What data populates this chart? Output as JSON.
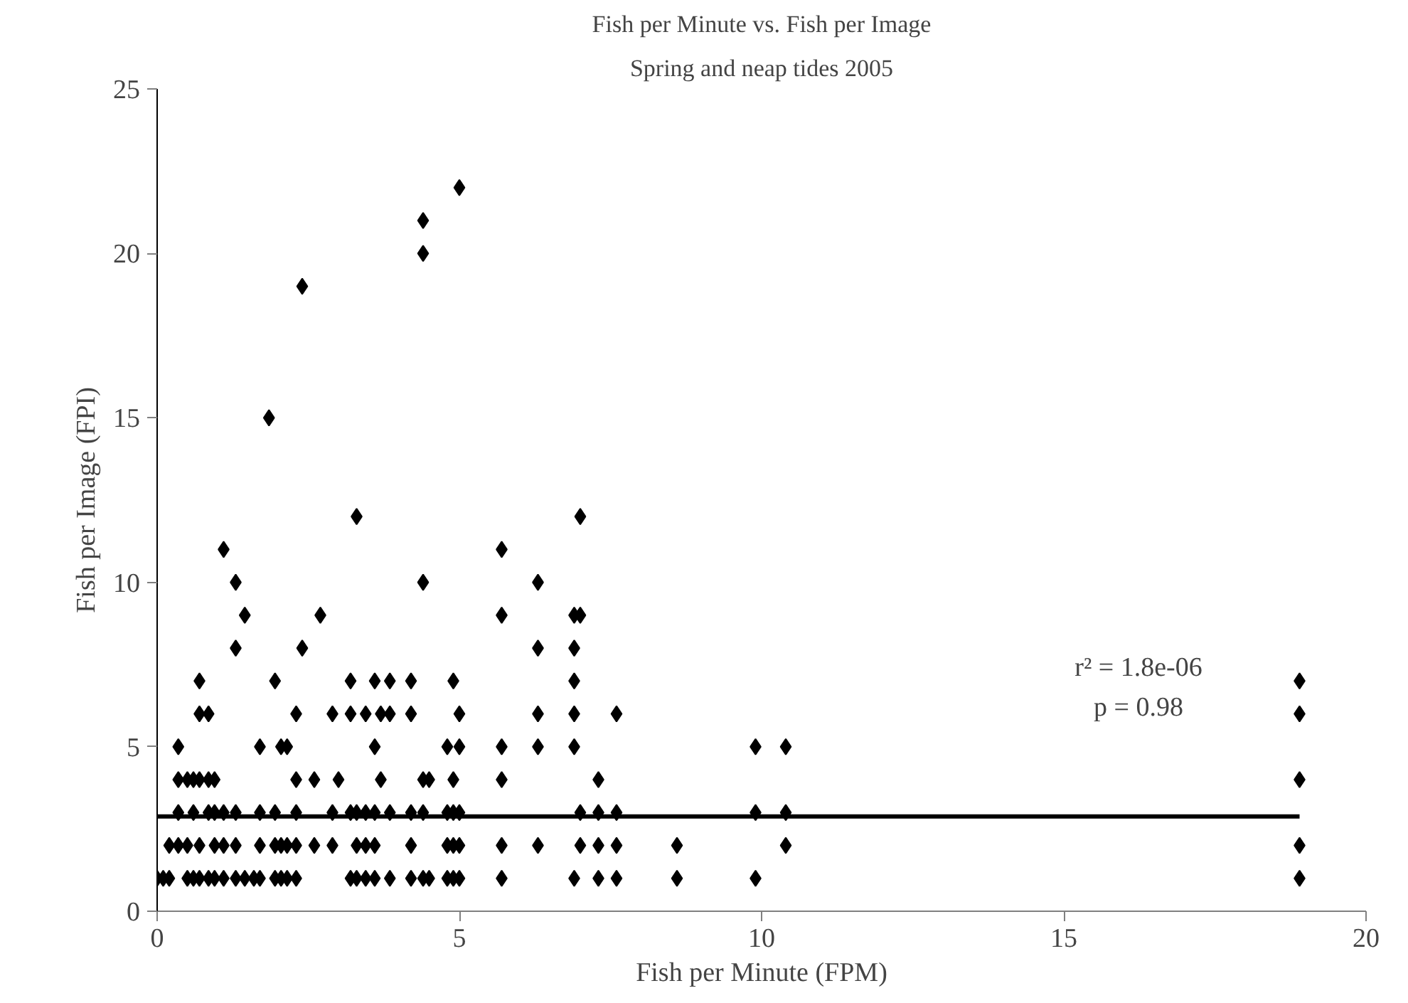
{
  "chart_data": {
    "type": "scatter",
    "title": "Fish per Minute vs. Fish per Image",
    "subtitle": "Spring and neap tides 2005",
    "xlabel": "Fish per Minute (FPM)",
    "ylabel": "Fish per Image (FPI)",
    "xlim": [
      0,
      20
    ],
    "xticks": [
      0,
      5,
      10,
      15,
      20
    ],
    "ylim": [
      0,
      25
    ],
    "yticks": [
      0,
      5,
      10,
      15,
      20,
      25
    ],
    "grid": false,
    "marker": "diamond",
    "series": [
      {
        "color": "#000000",
        "x": [
          0,
          0.1,
          0.2,
          0.2,
          0.35,
          0.35,
          0.35,
          0.35,
          0.5,
          0.5,
          0.5,
          0.6,
          0.6,
          0.6,
          0.7,
          0.7,
          0.7,
          0.7,
          0.7,
          0.85,
          0.85,
          0.85,
          0.85,
          0.95,
          0.95,
          0.95,
          0.95,
          1.1,
          1.1,
          1.1,
          1.1,
          1.3,
          1.3,
          1.3,
          1.3,
          1.3,
          1.45,
          1.45,
          1.6,
          1.7,
          1.7,
          1.7,
          1.7,
          1.85,
          1.95,
          1.95,
          1.95,
          1.95,
          2.05,
          2.05,
          2.05,
          2.15,
          2.15,
          2.15,
          2.3,
          2.3,
          2.3,
          2.3,
          2.3,
          2.4,
          2.4,
          2.6,
          2.6,
          2.7,
          2.9,
          2.9,
          2.9,
          3.0,
          3.2,
          3.2,
          3.2,
          3.2,
          3.3,
          3.3,
          3.3,
          3.3,
          3.45,
          3.45,
          3.45,
          3.45,
          3.6,
          3.6,
          3.6,
          3.6,
          3.6,
          3.7,
          3.7,
          3.85,
          3.85,
          3.85,
          3.85,
          4.2,
          4.2,
          4.2,
          4.2,
          4.2,
          4.4,
          4.4,
          4.4,
          4.4,
          4.4,
          4.4,
          4.5,
          4.5,
          4.8,
          4.8,
          4.8,
          4.8,
          4.9,
          4.9,
          4.9,
          4.9,
          4.9,
          5.0,
          5.0,
          5.0,
          5.0,
          5.0,
          5.0,
          5.7,
          5.7,
          5.7,
          5.7,
          5.7,
          5.7,
          6.3,
          6.3,
          6.3,
          6.3,
          6.3,
          6.9,
          6.9,
          6.9,
          6.9,
          6.9,
          6.9,
          7.0,
          7.0,
          7.0,
          7.0,
          7.3,
          7.3,
          7.3,
          7.3,
          7.6,
          7.6,
          7.6,
          7.6,
          8.6,
          8.6,
          9.9,
          9.9,
          9.9,
          10.4,
          10.4,
          10.4,
          18.9,
          18.9,
          18.9,
          18.9,
          18.9
        ],
        "values": [
          1,
          1,
          2,
          1,
          2,
          3,
          4,
          5,
          2,
          4,
          1,
          1,
          3,
          4,
          1,
          2,
          4,
          6,
          7,
          1,
          3,
          4,
          6,
          1,
          2,
          3,
          4,
          1,
          2,
          3,
          11,
          1,
          2,
          3,
          10,
          8,
          1,
          9,
          1,
          1,
          2,
          3,
          5,
          15,
          1,
          2,
          3,
          7,
          1,
          2,
          5,
          1,
          2,
          5,
          1,
          2,
          3,
          4,
          6,
          8,
          19,
          2,
          4,
          9,
          2,
          3,
          6,
          4,
          1,
          3,
          6,
          7,
          12,
          1,
          2,
          3,
          1,
          2,
          3,
          6,
          1,
          2,
          3,
          5,
          7,
          6,
          4,
          1,
          3,
          6,
          7,
          1,
          2,
          3,
          7,
          6,
          20,
          21,
          10,
          4,
          3,
          1,
          4,
          1,
          1,
          2,
          3,
          5,
          1,
          2,
          3,
          4,
          7,
          22,
          1,
          2,
          3,
          6,
          5,
          11,
          9,
          5,
          4,
          2,
          1,
          10,
          8,
          6,
          5,
          2,
          9,
          8,
          7,
          6,
          5,
          1,
          12,
          9,
          3,
          2,
          1,
          2,
          3,
          4,
          6,
          1,
          2,
          3,
          1,
          2,
          5,
          3,
          1,
          5,
          3,
          2,
          7,
          6,
          4,
          2,
          1
        ]
      },
      {
        "type": "line",
        "color": "#000000",
        "line_style": "solid",
        "marker": "none",
        "x": [
          0,
          18.9
        ],
        "values": [
          2.88,
          2.88
        ]
      }
    ],
    "annotations": [
      "r² = 1.8e-06",
      "p = 0.98"
    ]
  }
}
